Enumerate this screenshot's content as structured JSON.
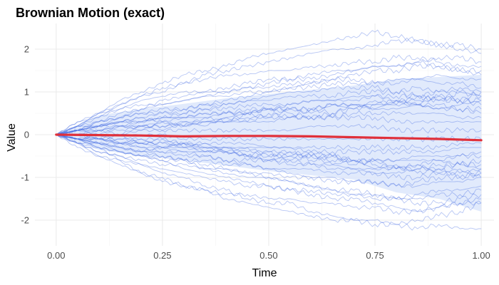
{
  "chart_data": {
    "type": "line",
    "title": "Brownian Motion (exact)",
    "xlabel": "Time",
    "ylabel": "Value",
    "xlim": [
      -0.05,
      1.03
    ],
    "ylim": [
      -2.6,
      2.6
    ],
    "x_ticks": [
      0.0,
      0.25,
      0.5,
      0.75,
      1.0
    ],
    "x_tick_labels": [
      "0.00",
      "0.25",
      "0.50",
      "0.75",
      "1.00"
    ],
    "y_ticks": [
      -2,
      -1,
      0,
      1,
      2
    ],
    "y_tick_labels": [
      "-2",
      "-1",
      "0",
      "1",
      "2"
    ],
    "grid": true,
    "legend": "none",
    "time_points": [
      0,
      0.05,
      0.1,
      0.15,
      0.2,
      0.25,
      0.3,
      0.35,
      0.4,
      0.45,
      0.5,
      0.55,
      0.6,
      0.65,
      0.7,
      0.75,
      0.8,
      0.85,
      0.9,
      0.95,
      1.0
    ],
    "mean_path": {
      "x": [
        0,
        0.1,
        0.2,
        0.3,
        0.4,
        0.5,
        0.6,
        0.7,
        0.8,
        0.9,
        1.0
      ],
      "y": [
        0.0,
        -0.01,
        -0.02,
        -0.04,
        -0.03,
        -0.03,
        -0.04,
        -0.06,
        -0.08,
        -0.1,
        -0.13
      ]
    },
    "band": {
      "x": [
        0,
        0.1,
        0.2,
        0.3,
        0.4,
        0.5,
        0.6,
        0.7,
        0.8,
        0.9,
        1.0
      ],
      "lower": [
        0.0,
        -0.35,
        -0.5,
        -0.6,
        -0.72,
        -0.85,
        -0.95,
        -1.05,
        -1.35,
        -1.5,
        -1.8
      ],
      "upper": [
        0.0,
        0.45,
        0.6,
        0.72,
        0.85,
        0.95,
        1.05,
        1.15,
        1.3,
        1.35,
        1.4
      ]
    },
    "paths": [
      [
        0,
        -0.1,
        -0.3,
        -0.6,
        -0.9,
        -1.0,
        -1.2,
        -1.3,
        -1.5,
        -1.6,
        -1.7,
        -1.8,
        -1.9,
        -2.0,
        -2.0,
        -2.1,
        -2.1,
        -2.2,
        -2.1,
        -2.2,
        -2.2
      ],
      [
        0,
        0.2,
        0.5,
        0.8,
        1.0,
        1.2,
        1.4,
        1.5,
        1.6,
        1.8,
        1.9,
        2.0,
        2.1,
        2.2,
        2.3,
        2.4,
        2.3,
        2.2,
        2.1,
        2.0,
        1.9
      ],
      [
        0,
        0.3,
        0.4,
        0.7,
        0.9,
        1.0,
        1.2,
        1.4,
        1.5,
        1.6,
        1.7,
        1.8,
        1.9,
        2.0,
        2.0,
        2.1,
        2.2,
        2.2,
        2.1,
        2.1,
        2.0
      ],
      [
        0,
        -0.2,
        -0.4,
        -0.5,
        -0.7,
        -0.9,
        -1.0,
        -1.2,
        -1.3,
        -1.5,
        -1.6,
        -1.6,
        -1.8,
        -1.9,
        -2.0,
        -2.0,
        -2.1,
        -2.0,
        -1.9,
        -1.8,
        -1.6
      ],
      [
        0,
        0.1,
        0.3,
        0.4,
        0.6,
        0.7,
        0.8,
        0.9,
        1.0,
        1.1,
        1.2,
        1.3,
        1.3,
        1.4,
        1.5,
        1.6,
        1.6,
        1.7,
        1.8,
        1.8,
        1.7
      ],
      [
        0,
        -0.2,
        -0.3,
        -0.4,
        -0.5,
        -0.6,
        -0.8,
        -0.9,
        -1.0,
        -1.1,
        -1.2,
        -1.3,
        -1.4,
        -1.5,
        -1.5,
        -1.6,
        -1.7,
        -1.8,
        -1.7,
        -1.6,
        -1.5
      ],
      [
        0,
        0.2,
        0.3,
        0.5,
        0.6,
        0.8,
        0.9,
        1.0,
        1.0,
        1.1,
        1.1,
        1.2,
        1.2,
        1.3,
        1.3,
        1.2,
        1.2,
        1.3,
        1.4,
        1.3,
        1.3
      ],
      [
        0,
        -0.1,
        -0.2,
        -0.3,
        -0.4,
        -0.5,
        -0.6,
        -0.8,
        -0.9,
        -1.0,
        -1.0,
        -1.1,
        -1.2,
        -1.3,
        -1.3,
        -1.4,
        -1.5,
        -1.4,
        -1.3,
        -1.3,
        -1.2
      ],
      [
        0,
        0.1,
        0.2,
        0.3,
        0.3,
        0.4,
        0.5,
        0.6,
        0.7,
        0.8,
        0.9,
        1.0,
        1.0,
        1.1,
        1.1,
        1.1,
        1.0,
        0.9,
        1.0,
        1.1,
        1.0
      ],
      [
        0,
        -0.1,
        -0.1,
        -0.2,
        -0.3,
        -0.4,
        -0.4,
        -0.5,
        -0.6,
        -0.7,
        -0.8,
        -0.9,
        -1.0,
        -1.0,
        -1.1,
        -1.1,
        -1.2,
        -1.1,
        -1.0,
        -1.0,
        -0.9
      ],
      [
        0,
        0.1,
        0.1,
        0.2,
        0.2,
        0.3,
        0.4,
        0.5,
        0.5,
        0.6,
        0.6,
        0.7,
        0.8,
        0.8,
        0.9,
        0.9,
        0.8,
        0.8,
        0.9,
        0.8,
        0.8
      ],
      [
        0,
        0.0,
        -0.1,
        -0.2,
        -0.2,
        -0.3,
        -0.3,
        -0.4,
        -0.4,
        -0.5,
        -0.6,
        -0.6,
        -0.7,
        -0.8,
        -0.8,
        -0.9,
        -0.9,
        -0.8,
        -0.8,
        -0.7,
        -0.7
      ],
      [
        0,
        0.1,
        0.2,
        0.2,
        0.3,
        0.4,
        0.4,
        0.4,
        0.5,
        0.5,
        0.6,
        0.6,
        0.6,
        0.7,
        0.7,
        0.6,
        0.6,
        0.7,
        0.6,
        0.6,
        0.5
      ],
      [
        0,
        -0.1,
        -0.1,
        -0.1,
        -0.2,
        -0.2,
        -0.3,
        -0.3,
        -0.3,
        -0.4,
        -0.4,
        -0.4,
        -0.5,
        -0.5,
        -0.6,
        -0.6,
        -0.6,
        -0.5,
        -0.5,
        -0.5,
        -0.4
      ],
      [
        0,
        0.0,
        0.1,
        0.1,
        0.2,
        0.2,
        0.2,
        0.3,
        0.3,
        0.3,
        0.3,
        0.4,
        0.4,
        0.4,
        0.4,
        0.4,
        0.3,
        0.3,
        0.3,
        0.3,
        0.3
      ],
      [
        0,
        0.0,
        -0.1,
        -0.1,
        -0.1,
        -0.1,
        -0.2,
        -0.2,
        -0.2,
        -0.2,
        -0.3,
        -0.3,
        -0.3,
        -0.3,
        -0.3,
        -0.3,
        -0.3,
        -0.3,
        -0.3,
        -0.2,
        -0.2
      ],
      [
        0,
        0.0,
        0.0,
        0.0,
        0.1,
        0.1,
        0.1,
        0.1,
        0.1,
        0.1,
        0.1,
        0.1,
        0.2,
        0.2,
        0.2,
        0.2,
        0.1,
        0.1,
        0.1,
        0.1,
        0.1
      ],
      [
        0,
        0.0,
        0.0,
        0.0,
        0.0,
        0.0,
        -0.1,
        -0.1,
        -0.1,
        -0.1,
        -0.1,
        -0.1,
        -0.1,
        -0.1,
        -0.1,
        -0.1,
        -0.1,
        -0.1,
        -0.1,
        -0.1,
        -0.1
      ],
      [
        0,
        0.3,
        0.5,
        0.6,
        0.8,
        0.9,
        1.0,
        1.0,
        1.1,
        1.2,
        1.3,
        1.3,
        1.4,
        1.5,
        1.5,
        1.6,
        1.6,
        1.7,
        1.6,
        1.5,
        1.5
      ],
      [
        0,
        -0.3,
        -0.5,
        -0.6,
        -0.7,
        -0.8,
        -0.9,
        -1.0,
        -1.1,
        -1.2,
        -1.2,
        -1.3,
        -1.3,
        -1.4,
        -1.4,
        -1.4,
        -1.5,
        -1.5,
        -1.4,
        -1.4,
        -1.3
      ],
      [
        0,
        0.2,
        0.4,
        0.6,
        0.7,
        0.7,
        0.8,
        0.9,
        0.9,
        1.0,
        1.0,
        1.1,
        1.1,
        1.2,
        1.2,
        1.2,
        1.3,
        1.3,
        1.2,
        1.2,
        1.1
      ],
      [
        0,
        -0.2,
        -0.4,
        -0.5,
        -0.6,
        -0.7,
        -0.7,
        -0.8,
        -0.8,
        -0.9,
        -0.9,
        -1.0,
        -1.0,
        -1.1,
        -1.1,
        -1.1,
        -1.2,
        -1.2,
        -1.1,
        -1.1,
        -1.0
      ],
      [
        0,
        0.1,
        0.3,
        0.4,
        0.5,
        0.5,
        0.6,
        0.7,
        0.7,
        0.8,
        0.8,
        0.9,
        0.9,
        0.9,
        1.0,
        1.0,
        1.0,
        1.1,
        1.0,
        1.0,
        0.9
      ],
      [
        0,
        -0.1,
        -0.3,
        -0.4,
        -0.5,
        -0.5,
        -0.6,
        -0.6,
        -0.7,
        -0.7,
        -0.8,
        -0.8,
        -0.8,
        -0.9,
        -0.9,
        -0.9,
        -1.0,
        -1.0,
        -0.9,
        -0.9,
        -0.8
      ],
      [
        0,
        0.2,
        0.2,
        0.3,
        0.4,
        0.5,
        0.5,
        0.6,
        0.6,
        0.7,
        0.7,
        0.7,
        0.8,
        0.8,
        0.8,
        0.9,
        0.9,
        0.9,
        0.8,
        0.8,
        0.7
      ],
      [
        0,
        -0.2,
        -0.2,
        -0.3,
        -0.4,
        -0.4,
        -0.5,
        -0.5,
        -0.6,
        -0.6,
        -0.6,
        -0.7,
        -0.7,
        -0.7,
        -0.8,
        -0.8,
        -0.8,
        -0.8,
        -0.7,
        -0.7,
        -0.6
      ],
      [
        0,
        0.1,
        0.2,
        0.3,
        0.3,
        0.4,
        0.4,
        0.5,
        0.5,
        0.5,
        0.6,
        0.6,
        0.6,
        0.7,
        0.7,
        0.7,
        0.7,
        0.7,
        0.7,
        0.6,
        0.6
      ],
      [
        0,
        -0.1,
        -0.2,
        -0.2,
        -0.3,
        -0.3,
        -0.4,
        -0.4,
        -0.4,
        -0.5,
        -0.5,
        -0.5,
        -0.5,
        -0.6,
        -0.6,
        -0.6,
        -0.6,
        -0.6,
        -0.6,
        -0.5,
        -0.5
      ],
      [
        0,
        0.1,
        0.1,
        0.2,
        0.2,
        0.2,
        0.3,
        0.3,
        0.3,
        0.4,
        0.4,
        0.4,
        0.4,
        0.4,
        0.5,
        0.5,
        0.5,
        0.5,
        0.5,
        0.4,
        0.4
      ],
      [
        0,
        -0.1,
        -0.1,
        -0.2,
        -0.2,
        -0.2,
        -0.2,
        -0.3,
        -0.3,
        -0.3,
        -0.3,
        -0.3,
        -0.4,
        -0.4,
        -0.4,
        -0.4,
        -0.4,
        -0.4,
        -0.4,
        -0.3,
        -0.3
      ],
      [
        0,
        0.2,
        0.5,
        0.7,
        0.9,
        1.1,
        1.2,
        1.3,
        1.4,
        1.4,
        1.5,
        1.5,
        1.6,
        1.6,
        1.7,
        1.7,
        1.8,
        1.8,
        1.7,
        1.6,
        1.6
      ],
      [
        0,
        -0.2,
        -0.5,
        -0.7,
        -0.9,
        -1.1,
        -1.2,
        -1.3,
        -1.4,
        -1.4,
        -1.5,
        -1.5,
        -1.6,
        -1.6,
        -1.7,
        -1.7,
        -1.8,
        -1.8,
        -1.7,
        -1.6,
        -1.6
      ],
      [
        0,
        0.1,
        0.0,
        0.2,
        0.1,
        0.3,
        0.2,
        0.4,
        0.3,
        0.5,
        0.4,
        0.6,
        0.5,
        0.7,
        0.6,
        0.8,
        0.7,
        0.9,
        0.8,
        1.0,
        0.9
      ],
      [
        0,
        -0.1,
        0.0,
        -0.2,
        -0.1,
        -0.3,
        -0.2,
        -0.4,
        -0.3,
        -0.5,
        -0.4,
        -0.6,
        -0.5,
        -0.7,
        -0.6,
        -0.8,
        -0.7,
        -0.9,
        -0.8,
        -1.0,
        -0.9
      ],
      [
        0,
        0.0,
        0.1,
        0.0,
        0.2,
        0.1,
        0.3,
        0.2,
        0.4,
        0.3,
        0.5,
        0.4,
        0.6,
        0.5,
        0.7,
        0.6,
        0.8,
        0.7,
        0.9,
        0.8,
        1.0
      ],
      [
        0,
        0.0,
        -0.1,
        0.0,
        -0.2,
        -0.1,
        -0.3,
        -0.2,
        -0.4,
        -0.3,
        -0.5,
        -0.4,
        -0.6,
        -0.5,
        -0.7,
        -0.6,
        -0.8,
        -0.7,
        -0.9,
        -0.8,
        -1.0
      ],
      [
        0,
        0.1,
        0.2,
        0.3,
        0.4,
        0.3,
        0.2,
        0.3,
        0.4,
        0.5,
        0.6,
        0.5,
        0.4,
        0.5,
        0.6,
        0.7,
        0.8,
        0.7,
        0.6,
        0.7,
        0.8
      ],
      [
        0,
        -0.1,
        -0.2,
        -0.3,
        -0.4,
        -0.3,
        -0.2,
        -0.3,
        -0.4,
        -0.5,
        -0.6,
        -0.5,
        -0.4,
        -0.5,
        -0.6,
        -0.7,
        -0.8,
        -0.7,
        -0.6,
        -0.7,
        -0.8
      ],
      [
        0,
        0.1,
        0.2,
        0.4,
        0.5,
        0.6,
        0.6,
        0.7,
        0.8,
        0.9,
        1.0,
        1.1,
        1.2,
        1.3,
        1.4,
        1.5,
        1.5,
        1.6,
        1.6,
        1.5,
        1.4
      ],
      [
        0,
        -0.1,
        -0.2,
        -0.4,
        -0.5,
        -0.6,
        -0.6,
        -0.7,
        -0.8,
        -0.9,
        -1.0,
        -1.1,
        -1.2,
        -1.3,
        -1.4,
        -1.5,
        -1.5,
        -1.6,
        -1.6,
        -1.5,
        -1.4
      ]
    ],
    "colors": {
      "paths": "#4169e1",
      "mean": "#e0303a",
      "band": "#dce6fb",
      "grid": "#ebebeb",
      "text": "#000000",
      "tick_text": "#4d4d4d"
    }
  }
}
